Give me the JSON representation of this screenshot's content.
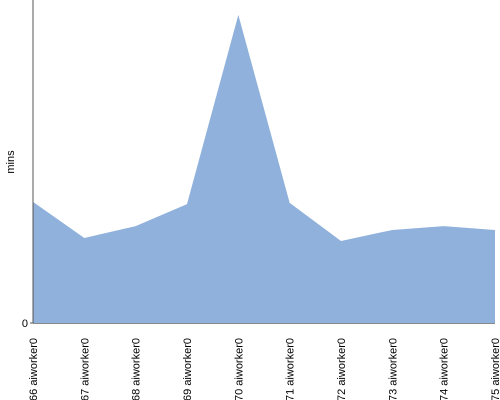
{
  "chart_data": {
    "type": "area",
    "categories": [
      "#66 aiworker0",
      "#67 aiworker0",
      "#68 aiworker0",
      "#69 aiworker0",
      "#70 aiworker0",
      "#71 aiworker0",
      "#72 aiworker0",
      "#73 aiworker0",
      "#74 aiworker0",
      "#75 aiworker0"
    ],
    "values": [
      37.5,
      26.3,
      30.0,
      36.8,
      95.4,
      37.2,
      25.4,
      28.8,
      30.0,
      28.8
    ],
    "color": "#8fb1db",
    "y_label": "mins",
    "ylim": [
      0,
      100
    ],
    "yticks": [
      0
    ],
    "grid": false
  }
}
